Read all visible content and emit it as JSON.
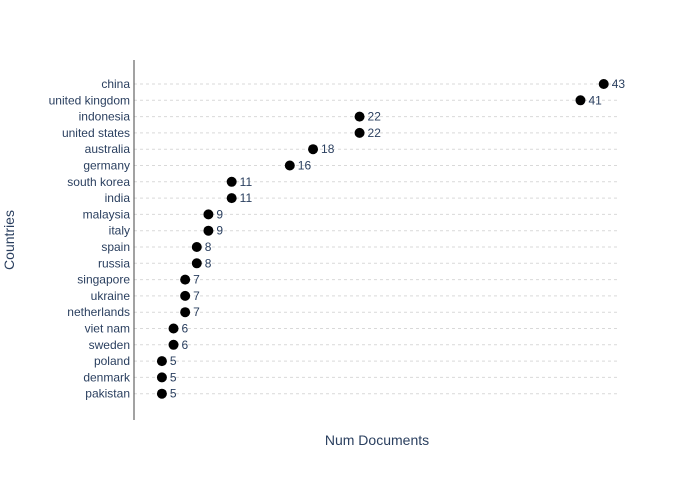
{
  "chart_data": {
    "type": "scatter",
    "orientation": "horizontal-dot",
    "xlabel": "Num Documents",
    "ylabel": "Countries",
    "grid": "horizontal-dashed",
    "show_x_ticks": false,
    "xlim": [
      2.6,
      44.4
    ],
    "categories": [
      "china",
      "united kingdom",
      "indonesia",
      "united states",
      "australia",
      "germany",
      "south korea",
      "india",
      "malaysia",
      "italy",
      "spain",
      "russia",
      "singapore",
      "ukraine",
      "netherlands",
      "viet nam",
      "sweden",
      "poland",
      "denmark",
      "pakistan"
    ],
    "values": [
      43,
      41,
      22,
      22,
      18,
      16,
      11,
      11,
      9,
      9,
      8,
      8,
      7,
      7,
      7,
      6,
      6,
      5,
      5,
      5
    ],
    "marker_color": "#000000",
    "text_color": "#2a3f5f",
    "grid_color": "#d9d9d9"
  }
}
